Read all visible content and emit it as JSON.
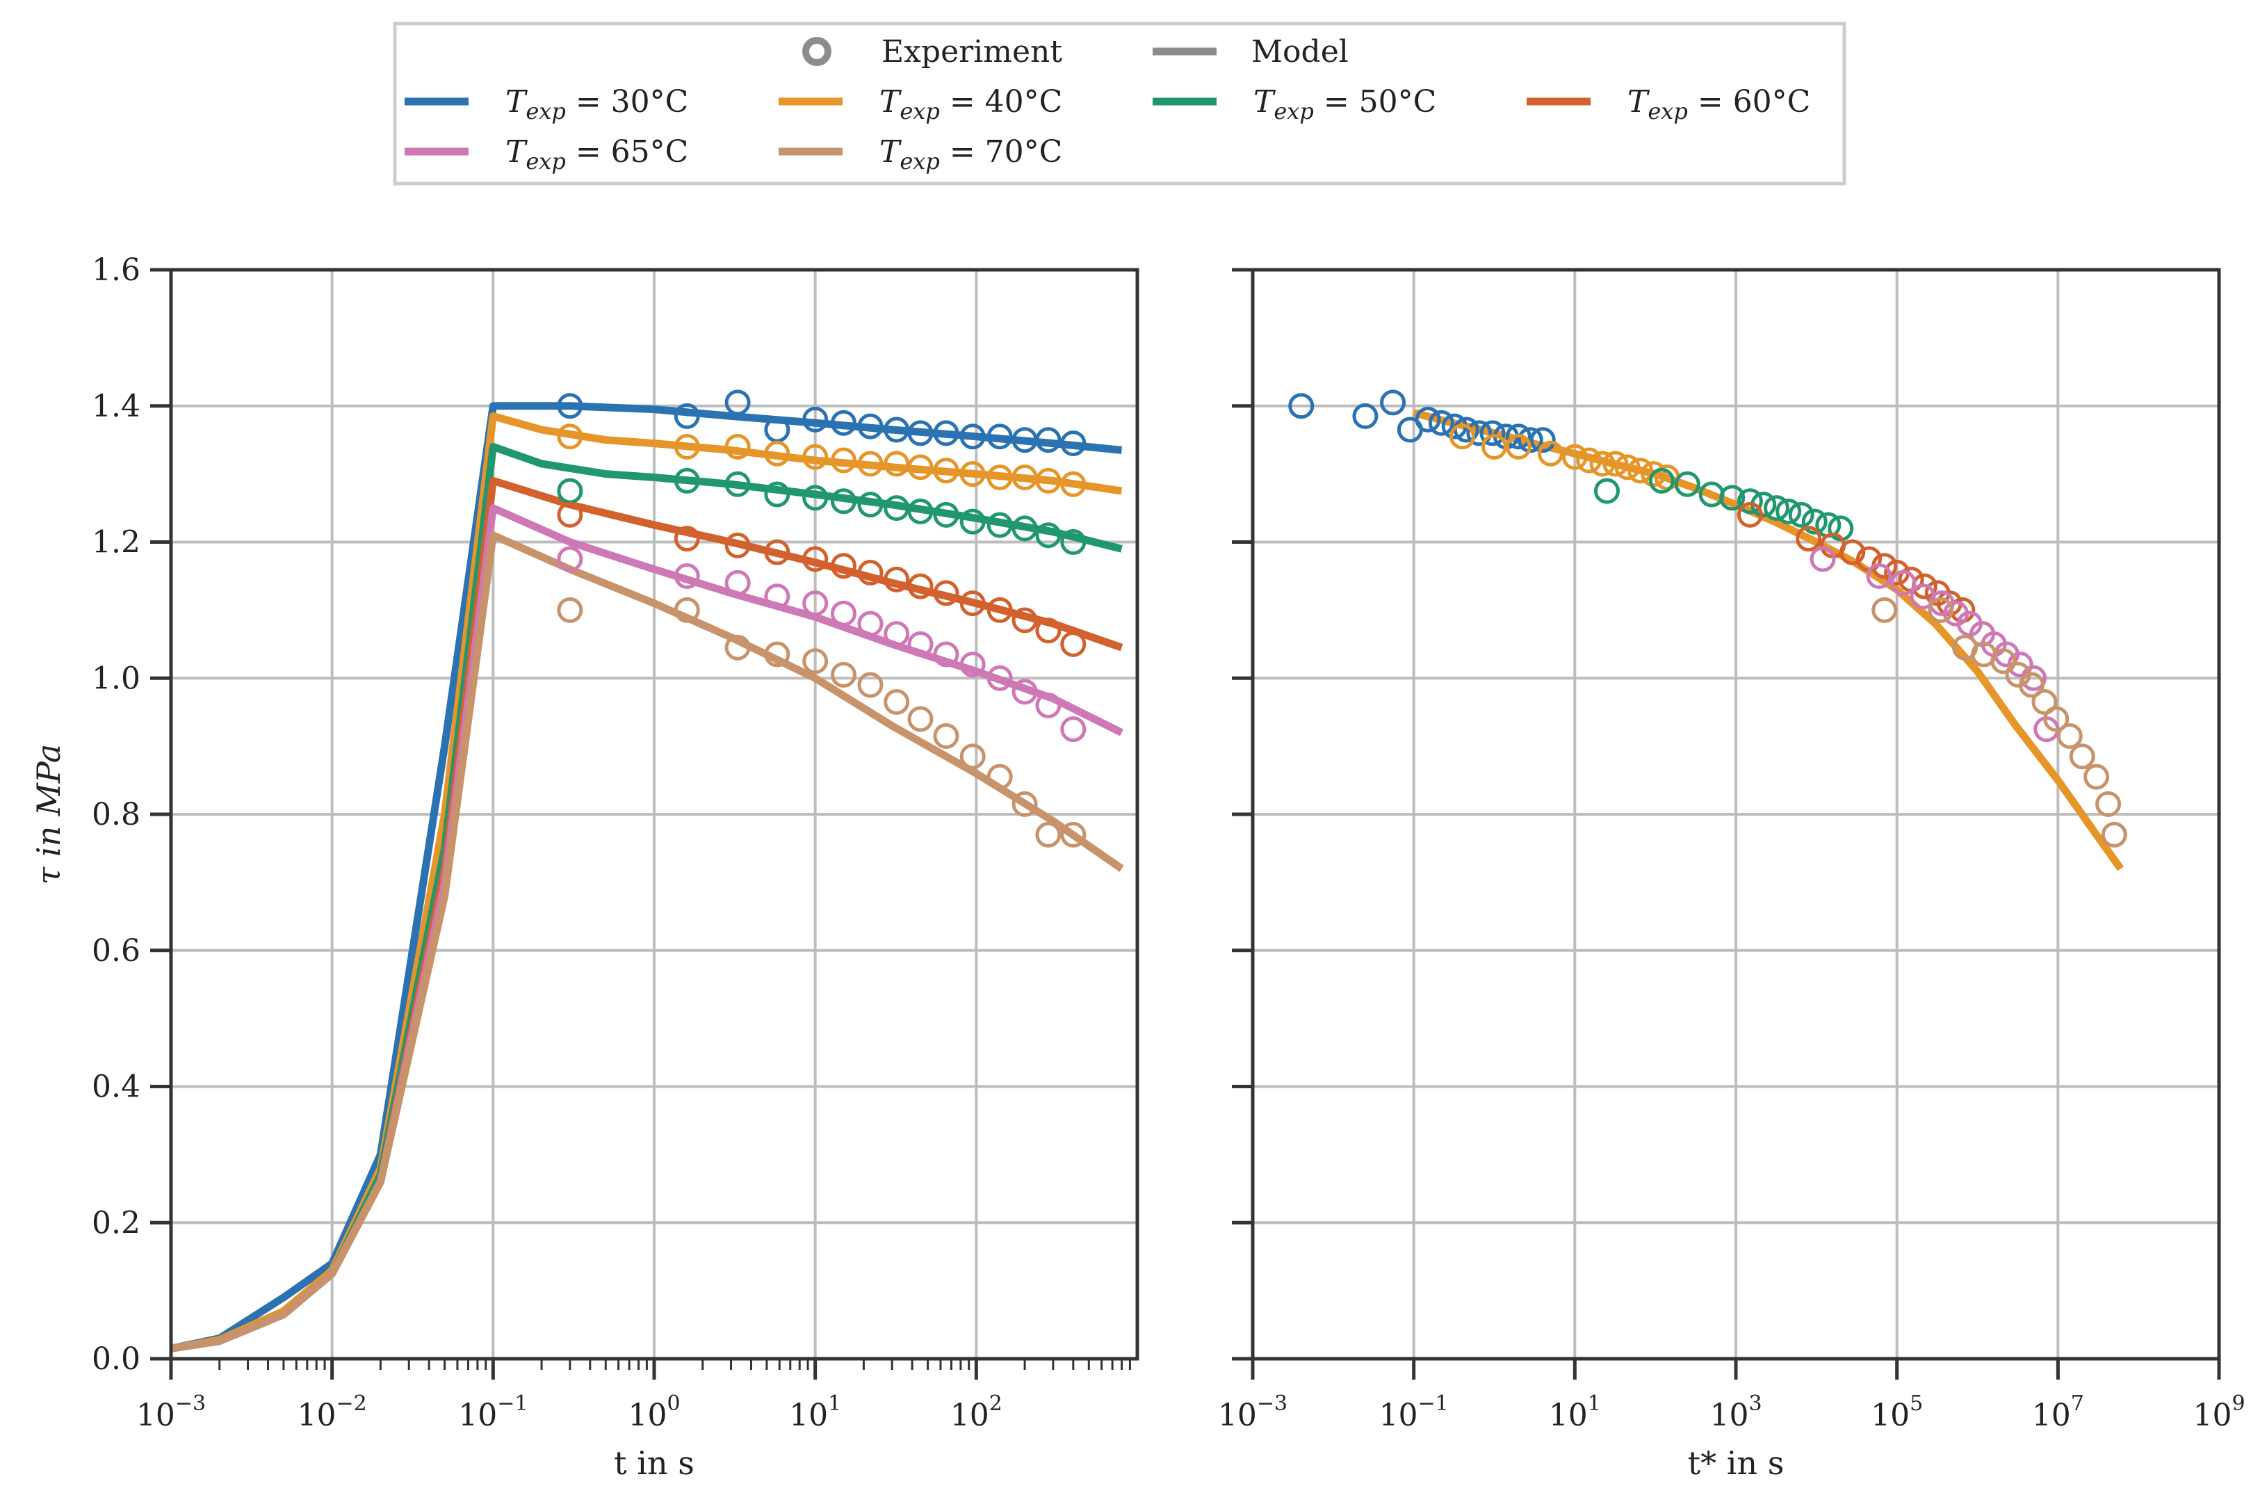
{
  "legend": {
    "experiment_label": "Experiment",
    "model_label": "Model",
    "temp_prefix": "T",
    "temp_subscript": "exp",
    "temp_equals": " = ",
    "temp_unit": "°C"
  },
  "series": [
    {
      "name": "30",
      "color": "#2a72b2"
    },
    {
      "name": "40",
      "color": "#e69528"
    },
    {
      "name": "50",
      "color": "#21976e"
    },
    {
      "name": "60",
      "color": "#d2612e"
    },
    {
      "name": "65",
      "color": "#cf78b6"
    },
    {
      "name": "70",
      "color": "#c8936a"
    }
  ],
  "chart_data": [
    {
      "type": "line",
      "title": "",
      "xlabel": "t in s",
      "ylabel": "τ in MPa",
      "xscale": "log",
      "xlim": [
        0.001,
        1000
      ],
      "ylim": [
        0,
        1.6
      ],
      "yticks": [
        "0.0",
        "0.2",
        "0.4",
        "0.6",
        "0.8",
        "1.0",
        "1.2",
        "1.4",
        "1.6"
      ],
      "xticks": [
        {
          "base": "10",
          "exp": "−3"
        },
        {
          "base": "10",
          "exp": "−2"
        },
        {
          "base": "10",
          "exp": "−1"
        },
        {
          "base": "10",
          "exp": "0"
        },
        {
          "base": "10",
          "exp": "1"
        },
        {
          "base": "10",
          "exp": "2"
        }
      ],
      "model": [
        {
          "series": "30",
          "x": [
            0.001,
            0.002,
            0.005,
            0.01,
            0.02,
            0.05,
            0.1,
            0.3,
            1,
            3,
            10,
            30,
            100,
            300,
            800
          ],
          "y": [
            0.015,
            0.03,
            0.09,
            0.14,
            0.3,
            0.9,
            1.4,
            1.4,
            1.395,
            1.385,
            1.375,
            1.365,
            1.355,
            1.345,
            1.335
          ]
        },
        {
          "series": "40",
          "x": [
            0.001,
            0.002,
            0.005,
            0.01,
            0.02,
            0.05,
            0.1,
            0.2,
            0.5,
            1,
            3,
            10,
            30,
            100,
            300,
            800
          ],
          "y": [
            0.015,
            0.028,
            0.07,
            0.13,
            0.28,
            0.8,
            1.385,
            1.365,
            1.35,
            1.345,
            1.335,
            1.32,
            1.31,
            1.3,
            1.29,
            1.275
          ]
        },
        {
          "series": "50",
          "x": [
            0.001,
            0.002,
            0.005,
            0.01,
            0.02,
            0.05,
            0.1,
            0.2,
            0.5,
            1,
            3,
            10,
            30,
            100,
            300,
            800
          ],
          "y": [
            0.015,
            0.026,
            0.065,
            0.125,
            0.27,
            0.75,
            1.34,
            1.315,
            1.3,
            1.295,
            1.285,
            1.27,
            1.255,
            1.235,
            1.215,
            1.19
          ]
        },
        {
          "series": "60",
          "x": [
            0.001,
            0.002,
            0.005,
            0.01,
            0.02,
            0.05,
            0.1,
            0.3,
            1,
            3,
            10,
            30,
            100,
            300,
            800
          ],
          "y": [
            0.015,
            0.026,
            0.065,
            0.125,
            0.26,
            0.72,
            1.29,
            1.255,
            1.225,
            1.2,
            1.17,
            1.14,
            1.11,
            1.08,
            1.045
          ]
        },
        {
          "series": "65",
          "x": [
            0.001,
            0.002,
            0.005,
            0.01,
            0.02,
            0.05,
            0.1,
            0.3,
            1,
            3,
            10,
            30,
            100,
            300,
            800
          ],
          "y": [
            0.015,
            0.026,
            0.065,
            0.125,
            0.26,
            0.7,
            1.25,
            1.2,
            1.16,
            1.125,
            1.09,
            1.05,
            1.01,
            0.97,
            0.92
          ]
        },
        {
          "series": "70",
          "x": [
            0.001,
            0.002,
            0.005,
            0.01,
            0.02,
            0.05,
            0.1,
            0.3,
            1,
            3,
            10,
            30,
            100,
            300,
            800
          ],
          "y": [
            0.015,
            0.026,
            0.065,
            0.125,
            0.26,
            0.68,
            1.21,
            1.16,
            1.11,
            1.06,
            1.0,
            0.93,
            0.86,
            0.79,
            0.72
          ]
        }
      ],
      "experiment": [
        {
          "series": "30",
          "x": [
            0.3,
            1.6,
            3.3,
            5.8,
            10,
            15,
            22,
            32,
            45,
            65,
            95,
            140,
            200,
            280,
            400
          ],
          "y": [
            1.4,
            1.385,
            1.405,
            1.365,
            1.38,
            1.375,
            1.37,
            1.365,
            1.36,
            1.36,
            1.355,
            1.355,
            1.35,
            1.35,
            1.345
          ]
        },
        {
          "series": "40",
          "x": [
            0.3,
            1.6,
            3.3,
            5.8,
            10,
            15,
            22,
            32,
            45,
            65,
            95,
            140,
            200,
            280,
            400
          ],
          "y": [
            1.355,
            1.34,
            1.34,
            1.33,
            1.325,
            1.32,
            1.315,
            1.315,
            1.31,
            1.305,
            1.3,
            1.295,
            1.295,
            1.29,
            1.285
          ]
        },
        {
          "series": "50",
          "x": [
            0.3,
            1.6,
            3.3,
            5.8,
            10,
            15,
            22,
            32,
            45,
            65,
            95,
            140,
            200,
            280,
            400
          ],
          "y": [
            1.275,
            1.29,
            1.285,
            1.27,
            1.265,
            1.26,
            1.255,
            1.25,
            1.245,
            1.24,
            1.23,
            1.225,
            1.22,
            1.21,
            1.2
          ]
        },
        {
          "series": "60",
          "x": [
            0.3,
            1.6,
            3.3,
            5.8,
            10,
            15,
            22,
            32,
            45,
            65,
            95,
            140,
            200,
            280,
            400
          ],
          "y": [
            1.24,
            1.205,
            1.195,
            1.185,
            1.175,
            1.165,
            1.155,
            1.145,
            1.135,
            1.125,
            1.11,
            1.1,
            1.085,
            1.07,
            1.05
          ]
        },
        {
          "series": "65",
          "x": [
            0.3,
            1.6,
            3.3,
            5.8,
            10,
            15,
            22,
            32,
            45,
            65,
            95,
            140,
            200,
            280,
            400
          ],
          "y": [
            1.175,
            1.15,
            1.14,
            1.12,
            1.11,
            1.095,
            1.08,
            1.065,
            1.05,
            1.035,
            1.02,
            1.0,
            0.98,
            0.96,
            0.925
          ]
        },
        {
          "series": "70",
          "x": [
            0.3,
            1.6,
            3.3,
            5.8,
            10,
            15,
            22,
            32,
            45,
            65,
            95,
            140,
            200,
            280,
            400
          ],
          "y": [
            1.1,
            1.1,
            1.045,
            1.035,
            1.025,
            1.005,
            0.99,
            0.965,
            0.94,
            0.915,
            0.885,
            0.855,
            0.815,
            0.77,
            0.77
          ]
        }
      ]
    },
    {
      "type": "line",
      "title": "",
      "xlabel": "t* in s",
      "ylabel": "",
      "xscale": "log",
      "xlim": [
        0.001,
        1000000000
      ],
      "ylim": [
        0,
        1.6
      ],
      "xticks": [
        {
          "base": "10",
          "exp": "−3"
        },
        {
          "base": "10",
          "exp": "−1"
        },
        {
          "base": "10",
          "exp": "1"
        },
        {
          "base": "10",
          "exp": "3"
        },
        {
          "base": "10",
          "exp": "5"
        },
        {
          "base": "10",
          "exp": "7"
        },
        {
          "base": "10",
          "exp": "9"
        }
      ],
      "model": [
        {
          "series": "40",
          "x": [
            0.1,
            0.3,
            1,
            3,
            10,
            30,
            100,
            300,
            1000,
            3000,
            10000,
            30000,
            100000,
            300000,
            1000000,
            3000000,
            10000000,
            30000000,
            60000000
          ],
          "y": [
            1.39,
            1.375,
            1.36,
            1.345,
            1.33,
            1.315,
            1.3,
            1.28,
            1.255,
            1.23,
            1.2,
            1.17,
            1.13,
            1.08,
            1.01,
            0.93,
            0.85,
            0.77,
            0.72
          ]
        }
      ],
      "experiment": [
        {
          "series": "30",
          "x": [
            0.004,
            0.025,
            0.055,
            0.09,
            0.15,
            0.22,
            0.32,
            0.45,
            0.65,
            0.95,
            1.4,
            2.0,
            2.8,
            4.0
          ],
          "y": [
            1.4,
            1.385,
            1.405,
            1.365,
            1.38,
            1.375,
            1.37,
            1.365,
            1.36,
            1.36,
            1.355,
            1.355,
            1.35,
            1.35
          ]
        },
        {
          "series": "40",
          "x": [
            0.4,
            1.0,
            2.0,
            5.0,
            10,
            15,
            22,
            32,
            45,
            65,
            95,
            140
          ],
          "y": [
            1.355,
            1.34,
            1.34,
            1.33,
            1.325,
            1.32,
            1.315,
            1.315,
            1.31,
            1.305,
            1.3,
            1.295
          ]
        },
        {
          "series": "50",
          "x": [
            25,
            120,
            250,
            500,
            900,
            1500,
            2200,
            3200,
            4500,
            6500,
            9500,
            14000,
            20000
          ],
          "y": [
            1.275,
            1.29,
            1.285,
            1.27,
            1.265,
            1.26,
            1.255,
            1.25,
            1.245,
            1.24,
            1.23,
            1.225,
            1.22
          ]
        },
        {
          "series": "60",
          "x": [
            1500,
            8000,
            16000,
            28000,
            45000,
            70000,
            100000,
            150000,
            220000,
            320000,
            450000,
            650000
          ],
          "y": [
            1.24,
            1.205,
            1.195,
            1.185,
            1.175,
            1.165,
            1.155,
            1.145,
            1.135,
            1.125,
            1.11,
            1.1
          ]
        },
        {
          "series": "65",
          "x": [
            12000,
            60000,
            120000,
            210000,
            360000,
            540000,
            800000,
            1150000,
            1600000,
            2300000,
            3400000,
            5000000,
            7200000
          ],
          "y": [
            1.175,
            1.15,
            1.14,
            1.12,
            1.11,
            1.095,
            1.08,
            1.065,
            1.05,
            1.035,
            1.02,
            1.0,
            0.925
          ]
        },
        {
          "series": "70",
          "x": [
            70000,
            350000,
            700000,
            1200000,
            2100000,
            3200000,
            4700000,
            6800000,
            9500000,
            14000000,
            20000000,
            30000000,
            42000000,
            50000000
          ],
          "y": [
            1.1,
            1.1,
            1.045,
            1.035,
            1.025,
            1.005,
            0.99,
            0.965,
            0.94,
            0.915,
            0.885,
            0.855,
            0.815,
            0.77
          ]
        }
      ]
    }
  ]
}
